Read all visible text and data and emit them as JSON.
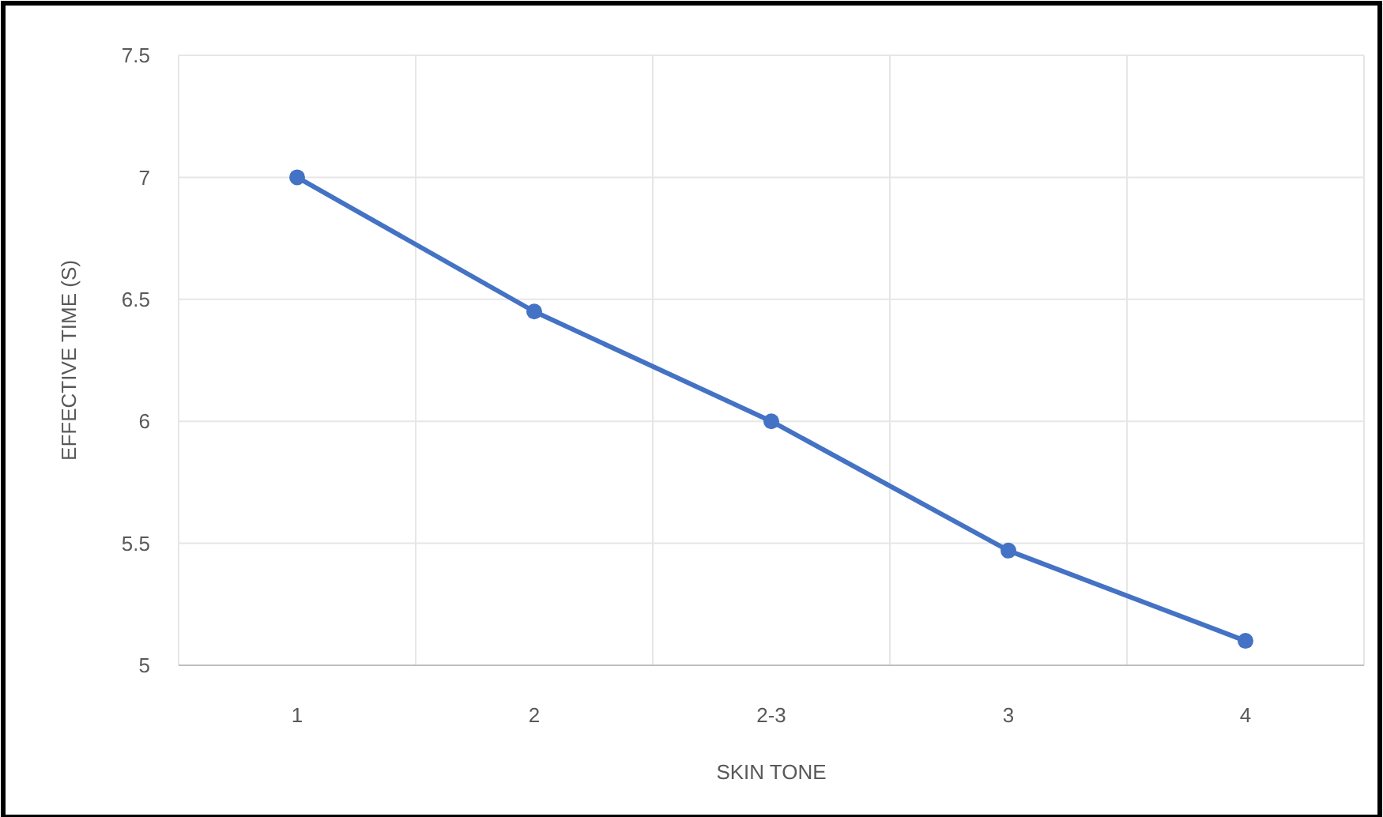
{
  "chart_data": {
    "type": "line",
    "xlabel": "SKIN TONE",
    "ylabel": "EFFECTIVE TIME (S)",
    "categories": [
      "1",
      "2",
      "2-3",
      "3",
      "4"
    ],
    "series": [
      {
        "color": "#4472c4",
        "values": [
          7,
          6.45,
          6,
          5.47,
          5.1
        ]
      }
    ],
    "ylim": [
      5,
      7.5
    ],
    "yticks": [
      5,
      5.5,
      6,
      6.5,
      7,
      7.5
    ],
    "grid": true,
    "marker": "circle",
    "line_style": "solid"
  }
}
